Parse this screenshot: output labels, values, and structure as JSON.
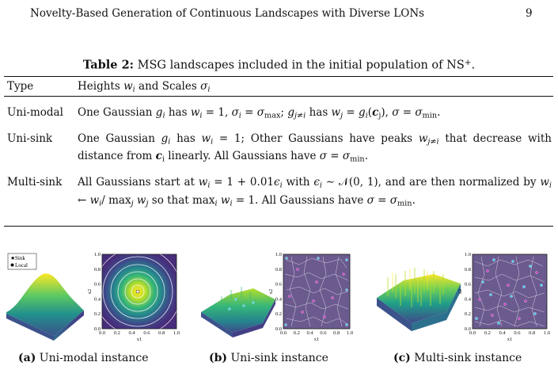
{
  "header": {
    "running_title": "Novelty-Based Generation of Continuous Landscapes with Diverse LONs",
    "page_number": "9"
  },
  "table": {
    "label": "Table 2:",
    "caption": "MSG landscapes included in the initial population of NS",
    "caption_sup": "+",
    "header": {
      "type": "Type",
      "desc": "Heights w_i and Scales σ_i"
    },
    "rows": [
      {
        "type": "Uni-modal",
        "desc": "One Gaussian g_i has w_i = 1, σ_i = σ_max; g_{j≠i} has w_j = g_i(c_j), σ = σ_min."
      },
      {
        "type": "Uni-sink",
        "desc": "One Gaussian g_i has w_i = 1; Other Gaussians have peaks w_{j≠i} that decrease with distance from c_i linearly. All Gaussians have σ = σ_min."
      },
      {
        "type": "Multi-sink",
        "desc": "All Gaussians start at w_i = 1 + 0.01ε_i with ε_i ~ N(0,1), and are then normalized by w_i ← w_i / max_j w_j so that max_i w_i = 1. All Gaussians have σ = σ_min."
      }
    ]
  },
  "figure": {
    "legend": {
      "sink": "Sink",
      "local": "Local"
    },
    "ticks": [
      "0.0",
      "0.2",
      "0.4",
      "0.6",
      "0.8",
      "1.0"
    ],
    "xlabel": "x1",
    "ylabel": "x2",
    "subcaptions": [
      {
        "label": "(a)",
        "text": "Uni-modal instance"
      },
      {
        "label": "(b)",
        "text": "Uni-sink instance"
      },
      {
        "label": "(c)",
        "text": "Multi-sink instance"
      }
    ]
  }
}
